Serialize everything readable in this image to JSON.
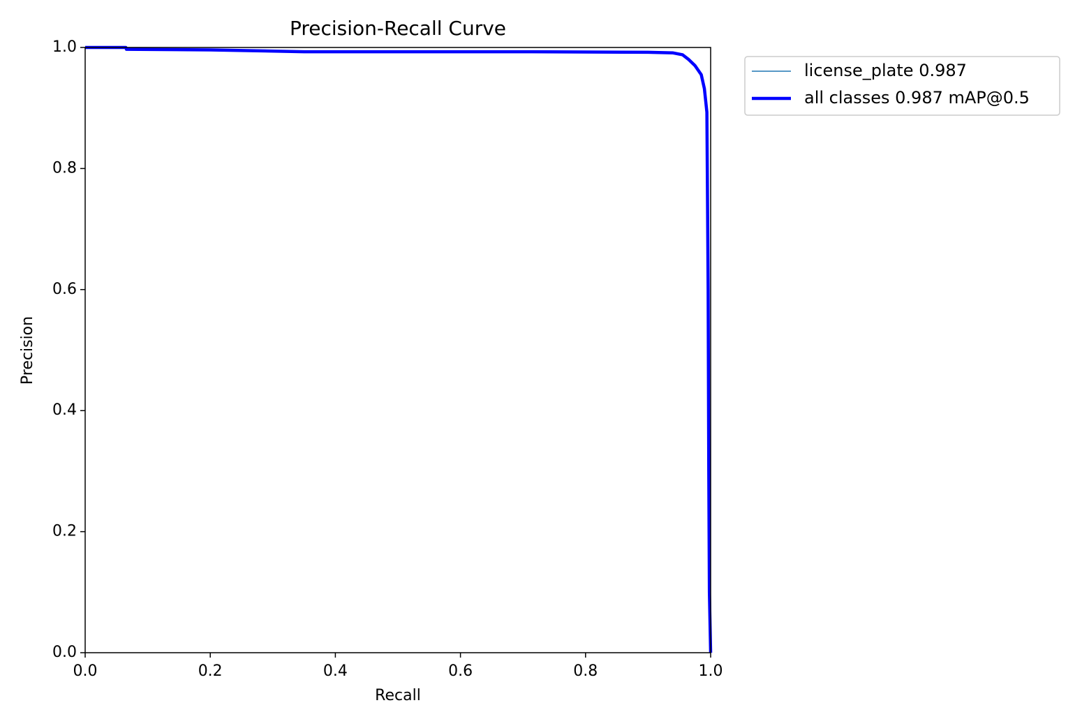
{
  "chart_data": {
    "type": "line",
    "title": "Precision-Recall Curve",
    "x_label": "Recall",
    "y_label": "Precision",
    "x": [
      0,
      0.065,
      0.066,
      0.2,
      0.35,
      0.5,
      0.7,
      0.9,
      0.94,
      0.955,
      0.965,
      0.975,
      0.985,
      0.99,
      0.994,
      0.996,
      0.997,
      0.998,
      1.0
    ],
    "series": [
      {
        "name": "license_plate 0.987",
        "color": "#1f77b4",
        "linewidth": 1.5,
        "values": [
          1.0,
          1.0,
          0.997,
          0.996,
          0.993,
          0.993,
          0.993,
          0.992,
          0.991,
          0.988,
          0.98,
          0.97,
          0.955,
          0.932,
          0.893,
          0.6,
          0.3,
          0.1,
          0.0
        ]
      },
      {
        "name": "all classes 0.987 mAP@0.5",
        "color": "#0000ff",
        "linewidth": 4.5,
        "values": [
          1.0,
          1.0,
          0.997,
          0.996,
          0.993,
          0.993,
          0.993,
          0.992,
          0.991,
          0.988,
          0.98,
          0.97,
          0.955,
          0.932,
          0.893,
          0.6,
          0.3,
          0.1,
          0.0
        ]
      }
    ],
    "xlim": [
      0,
      1
    ],
    "ylim": [
      0,
      1
    ],
    "xticks": [
      {
        "value": 0,
        "label": "0.0"
      },
      0.2,
      0.4,
      0.6,
      0.8,
      {
        "value": 1,
        "label": "1.0"
      }
    ],
    "yticks": [
      {
        "value": 0,
        "label": "0.0"
      },
      0.2,
      0.4,
      0.6,
      0.8,
      {
        "value": 1,
        "label": "1.0"
      }
    ],
    "grid": false,
    "legend": "outside-upper-right"
  }
}
